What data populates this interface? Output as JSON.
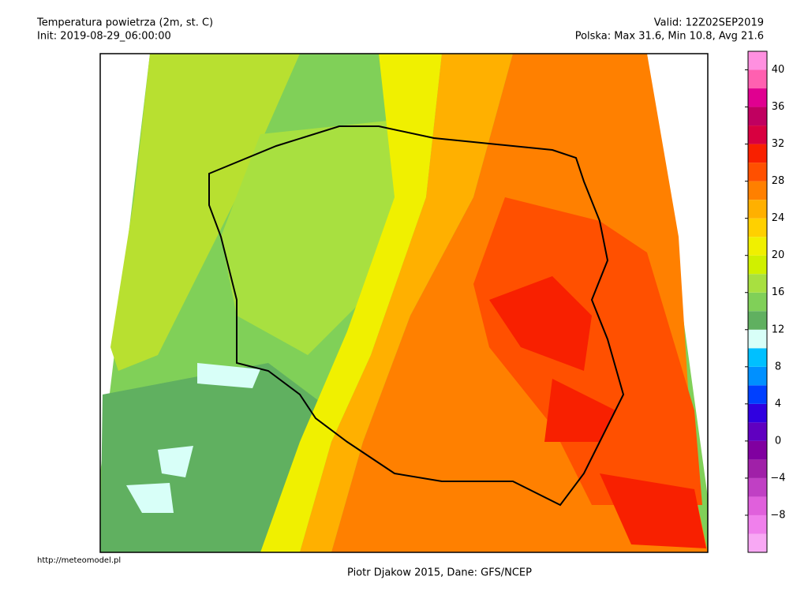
{
  "header": {
    "title": "Temperatura powietrza (2m, st. C)",
    "init": "Init: 2019-08-29_06:00:00",
    "valid": "Valid: 12Z02SEP2019",
    "stats": "Polska: Max 31.6, Min 10.8, Avg 21.6"
  },
  "colorbar": {
    "bins": [
      -12,
      -10,
      -8,
      -6,
      -4,
      -2,
      0,
      2,
      4,
      6,
      8,
      10,
      12,
      14,
      16,
      18,
      20,
      22,
      24,
      26,
      28,
      30,
      32,
      34,
      36,
      38,
      40,
      42
    ],
    "colors": [
      "#f8a8f4",
      "#f080ec",
      "#e060dc",
      "#c040c4",
      "#a020a8",
      "#8000a0",
      "#6000c0",
      "#3000e0",
      "#0040ff",
      "#0090ff",
      "#00c0ff",
      "#d8fff8",
      "#60b060",
      "#80d058",
      "#a8e040",
      "#d0f000",
      "#f0f000",
      "#ffd000",
      "#ffb000",
      "#ff8000",
      "#ff5000",
      "#f82000",
      "#d80040",
      "#c00060",
      "#e00090",
      "#ff60b0",
      "#ff90e0"
    ],
    "ticks": [
      {
        "value": -8,
        "label": "−8"
      },
      {
        "value": -4,
        "label": "−4"
      },
      0,
      4,
      8,
      12,
      16,
      20,
      24,
      28,
      32,
      36,
      40
    ]
  },
  "footer": {
    "credit": "Piotr Djakow 2015, Dane: GFS/NCEP",
    "url": "http://meteomodel.pl"
  }
}
